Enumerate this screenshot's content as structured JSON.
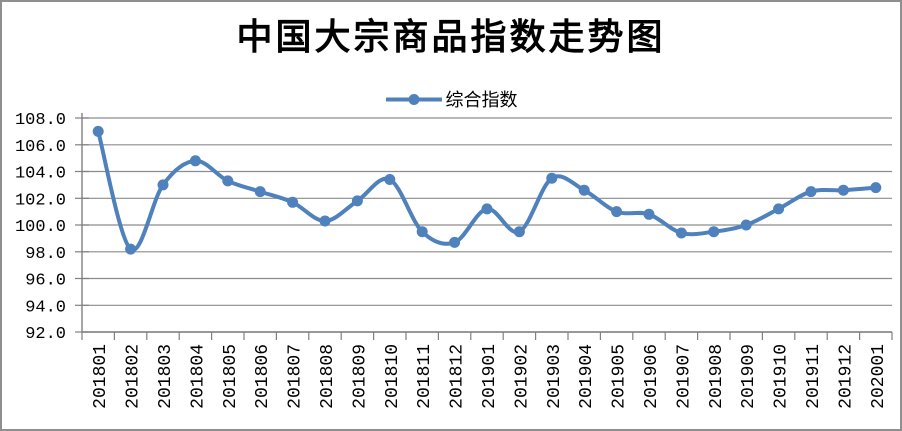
{
  "page": {
    "background": "#ffffff",
    "frame_border_color": "#8f8f8f"
  },
  "chart_data": {
    "type": "line",
    "title": "中国大宗商品指数走势图",
    "xlabel": "",
    "ylabel": "",
    "categories": [
      "201801",
      "201802",
      "201803",
      "201804",
      "201805",
      "201806",
      "201807",
      "201808",
      "201809",
      "201810",
      "201811",
      "201812",
      "201901",
      "201902",
      "201903",
      "201904",
      "201905",
      "201906",
      "201907",
      "201908",
      "201909",
      "201910",
      "201911",
      "201912",
      "202001"
    ],
    "series": [
      {
        "name": "综合指数",
        "color": "#4F81BD",
        "marker": "circle",
        "smooth": true,
        "values": [
          107.0,
          98.2,
          103.0,
          104.8,
          103.3,
          102.5,
          101.7,
          100.3,
          101.8,
          103.4,
          99.5,
          98.7,
          101.2,
          99.5,
          103.5,
          102.6,
          101.0,
          100.8,
          99.4,
          99.5,
          100.0,
          101.2,
          102.5,
          102.6,
          102.8
        ],
        "line_width": 4,
        "marker_radius": 5.5
      }
    ],
    "ylim": [
      92.0,
      108.0
    ],
    "ytick_step": 2.0,
    "ytick_decimals": 1,
    "x_tick_label_rotation": -90,
    "grid": "horizontal",
    "gridline_color": "#8c8c8c",
    "axis_color": "#808080",
    "legend_position": "top"
  }
}
